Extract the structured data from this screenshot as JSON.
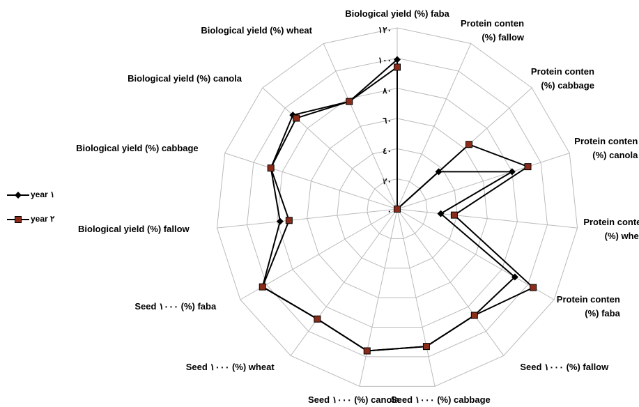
{
  "chart_data": {
    "type": "radar",
    "categories": [
      "Biological yield (%) faba",
      "Protein conten (%) fallow",
      "Protein conten (%) cabbage",
      "Protein conten (%) canola",
      "Protein conten (%) wheat",
      "Protein conten (%) faba",
      "Seed ١٠٠٠ (%) fallow",
      "Seed ١٠٠٠ (%) cabbage",
      "Seed ١٠٠٠ (%) canola",
      "Seed ١٠٠٠ (%) wheat",
      "Seed ١٠٠٠ (%) faba",
      "Biological yield (%) fallow",
      "Biological yield (%) cabbage",
      "Biological yield (%) canola",
      "Biological yield (%) wheat"
    ],
    "series": [
      {
        "name": "year ١",
        "color": "#000000",
        "marker": "diamond",
        "values": [
          99,
          0,
          37,
          80,
          29,
          90,
          87,
          93,
          96,
          90,
          103,
          78,
          88,
          93,
          78
        ]
      },
      {
        "name": "year ٢",
        "color": "#8b2c1a",
        "marker": "square",
        "values": [
          94,
          0,
          64,
          91,
          38,
          104,
          87,
          93,
          96,
          90,
          103,
          72,
          88,
          90,
          78
        ]
      }
    ],
    "ylim": [
      0,
      120
    ],
    "yticks": [
      {
        "value": 0,
        "label": "٠"
      },
      {
        "value": 20,
        "label": "٢٠"
      },
      {
        "value": 40,
        "label": "٤٠"
      },
      {
        "value": 60,
        "label": "٦٠"
      },
      {
        "value": 80,
        "label": "٨٠"
      },
      {
        "value": 100,
        "label": "١٠٠"
      },
      {
        "value": 120,
        "label": "١٢٠"
      }
    ],
    "grid": true,
    "legend": "left"
  }
}
